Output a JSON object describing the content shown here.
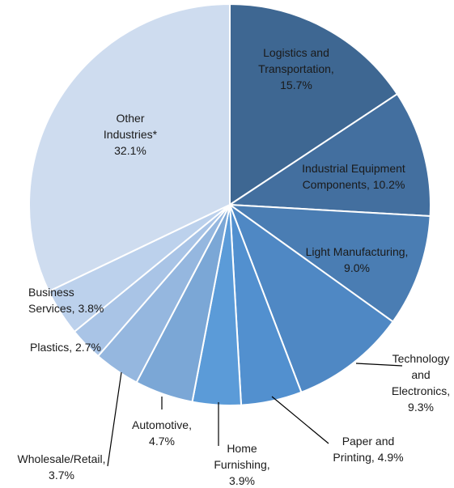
{
  "chart_data": {
    "type": "pie",
    "title": "",
    "unit": "%",
    "slices": [
      {
        "label": "Logistics and Transportation",
        "value": 15.7,
        "text_lines": [
          "Logistics and",
          "Transportation,",
          "15.7%"
        ],
        "color": "#3e6792"
      },
      {
        "label": "Industrial Equipment Components",
        "value": 10.2,
        "text_lines": [
          "Industrial Equipment",
          "Components, 10.2%"
        ],
        "color": "#436f9f"
      },
      {
        "label": "Light Manufacturing",
        "value": 9.0,
        "text_lines": [
          "Light Manufacturing,",
          "9.0%"
        ],
        "color": "#4a7db3"
      },
      {
        "label": "Technology and Electronics",
        "value": 9.3,
        "text_lines": [
          "Technology",
          "and",
          "Electronics,",
          "9.3%"
        ],
        "color": "#4f88c4"
      },
      {
        "label": "Paper and Printing",
        "value": 4.9,
        "text_lines": [
          "Paper and",
          "Printing, 4.9%"
        ],
        "color": "#5290cf"
      },
      {
        "label": "Home Furnishing",
        "value": 3.9,
        "text_lines": [
          "Home",
          "Furnishing,",
          "3.9%"
        ],
        "color": "#5b9bd8"
      },
      {
        "label": "Automotive",
        "value": 4.7,
        "text_lines": [
          "Automotive,",
          "4.7%"
        ],
        "color": "#7ba7d6"
      },
      {
        "label": "Wholesale/Retail",
        "value": 3.7,
        "text_lines": [
          "Wholesale/Retail,",
          "3.7%"
        ],
        "color": "#95b7df"
      },
      {
        "label": "Plastics",
        "value": 2.7,
        "text_lines": [
          "Plastics, 2.7%"
        ],
        "color": "#a9c4e6"
      },
      {
        "label": "Business Services",
        "value": 3.8,
        "text_lines": [
          "Business",
          "Services, 3.8%"
        ],
        "color": "#bcd1ec"
      },
      {
        "label": "Other Industries*",
        "value": 32.1,
        "text_lines": [
          "Other",
          "Industries*",
          "32.1%"
        ],
        "color": "#cedcef"
      }
    ]
  }
}
